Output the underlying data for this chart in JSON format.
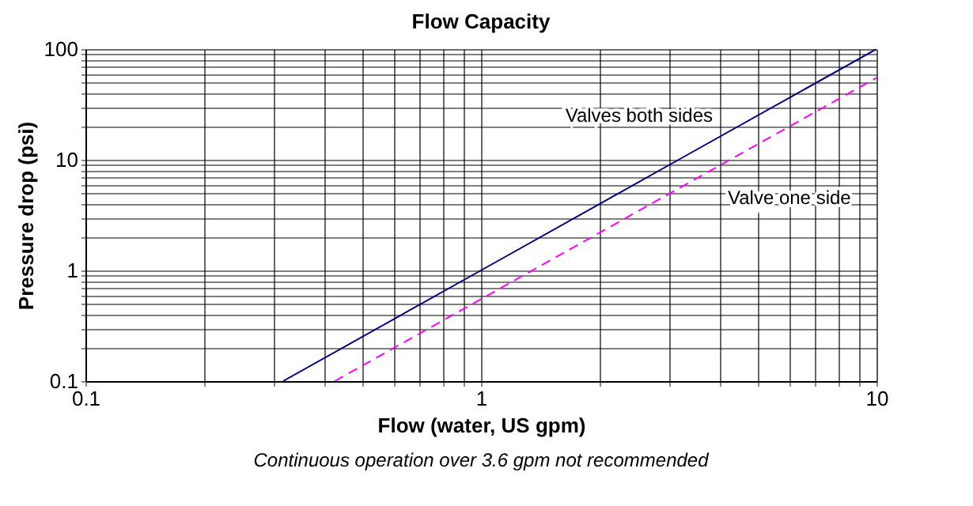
{
  "chart_data": {
    "type": "line",
    "title": "Flow Capacity",
    "xlabel": "Flow (water, US gpm)",
    "ylabel": "Pressure drop (psi)",
    "log": "xy",
    "grid": true,
    "marker": "none",
    "xlim": [
      0.1,
      10
    ],
    "ylim": [
      0.1,
      100
    ],
    "xticks": [
      0.1,
      {
        "value": 0.2,
        "label": null
      },
      {
        "value": 0.3,
        "label": null
      },
      {
        "value": 0.4,
        "label": null
      },
      {
        "value": 0.5,
        "label": null
      },
      {
        "value": 0.6,
        "label": null
      },
      {
        "value": 0.7,
        "label": null
      },
      {
        "value": 0.8,
        "label": null
      },
      {
        "value": 0.9,
        "label": null
      },
      1,
      {
        "value": 2,
        "label": null
      },
      {
        "value": 3,
        "label": null
      },
      {
        "value": 4,
        "label": null
      },
      {
        "value": 5,
        "label": null
      },
      {
        "value": 6,
        "label": null
      },
      {
        "value": 7,
        "label": null
      },
      {
        "value": 8,
        "label": null
      },
      {
        "value": 9,
        "label": null
      },
      10
    ],
    "yticks": [
      0.1,
      {
        "value": 0.2,
        "label": null
      },
      {
        "value": 0.3,
        "label": null
      },
      {
        "value": 0.4,
        "label": null
      },
      {
        "value": 0.5,
        "label": null
      },
      {
        "value": 0.6,
        "label": null
      },
      {
        "value": 0.7,
        "label": null
      },
      {
        "value": 0.8,
        "label": null
      },
      {
        "value": 0.9,
        "label": null
      },
      1,
      {
        "value": 2,
        "label": null
      },
      {
        "value": 3,
        "label": null
      },
      {
        "value": 4,
        "label": null
      },
      {
        "value": 5,
        "label": null
      },
      {
        "value": 6,
        "label": null
      },
      {
        "value": 7,
        "label": null
      },
      {
        "value": 8,
        "label": null
      },
      {
        "value": 9,
        "label": null
      },
      10,
      {
        "value": 20,
        "label": null
      },
      {
        "value": 30,
        "label": null
      },
      {
        "value": 40,
        "label": null
      },
      {
        "value": 50,
        "label": null
      },
      {
        "value": 60,
        "label": null
      },
      {
        "value": 70,
        "label": null
      },
      {
        "value": 80,
        "label": null
      },
      {
        "value": 90,
        "label": null
      },
      100
    ],
    "series": [
      {
        "name": "Valves both sides",
        "color": "#000080",
        "line_style": "solid",
        "x": [
          0.316,
          1,
          3.16,
          10
        ],
        "values": [
          0.1,
          1,
          10,
          100
        ]
      },
      {
        "name": "Valve one side",
        "color": "#ff00ff",
        "line_style": "dashed",
        "x": [
          0.427,
          1,
          3.16,
          10
        ],
        "values": [
          0.1,
          0.55,
          5.5,
          55
        ]
      }
    ],
    "annotations": [
      "Continuous operation over 3.6 gpm not recommended"
    ]
  }
}
